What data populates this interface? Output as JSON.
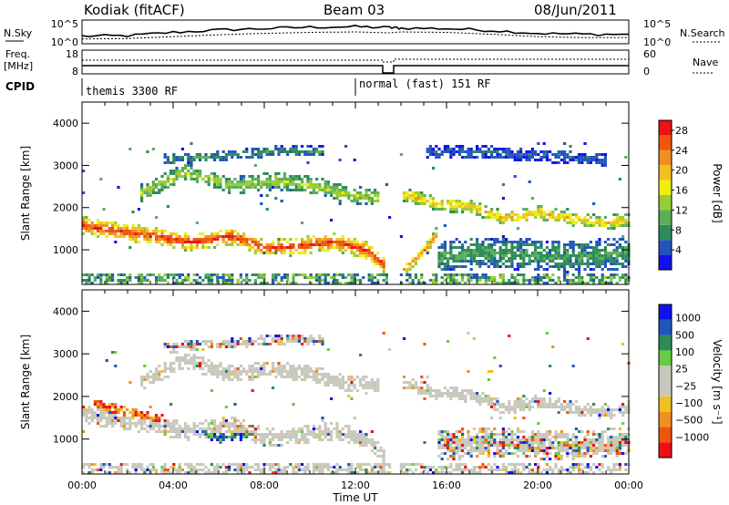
{
  "header": {
    "station": "Kodiak (fitACF)",
    "beam": "Beam 03",
    "date": "08/Jun/2011"
  },
  "nsky_panel": {
    "left_label": "N.Sky",
    "right_label": "N.Search",
    "left_ticks": [
      "10^5",
      "10^0"
    ],
    "right_ticks": [
      "10^5",
      "10^0"
    ]
  },
  "freq_panel": {
    "left_label_1": "Freq.",
    "left_label_2": "[MHz]",
    "right_label": "Nave",
    "left_ticks": [
      "18",
      "8"
    ],
    "right_ticks": [
      "60",
      "0"
    ]
  },
  "cpid": {
    "label": "CPID",
    "segments": [
      {
        "text": "themis 3300 RF",
        "start_hour": 0
      },
      {
        "text": "normal (fast) 151 RF",
        "start_hour": 12
      }
    ]
  },
  "colors": {
    "power_scale": [
      "#1111ee",
      "#2255bb",
      "#2e8b57",
      "#5aae5a",
      "#99cc33",
      "#eeee11",
      "#f0c020",
      "#f09020",
      "#ee5511",
      "#ee1111"
    ],
    "velocity_scale": [
      "#ee1111",
      "#ee5511",
      "#f09020",
      "#f0c020",
      "#c8c8bc",
      "#c8c8bc",
      "#66cc44",
      "#2e8b57",
      "#2255bb",
      "#1111ee"
    ],
    "ground_scatter": "#c8c8bc"
  },
  "chart_data": [
    {
      "type": "line",
      "panel": "sky-noise",
      "x": [
        0,
        2,
        4,
        6,
        8,
        10,
        12,
        13.5,
        14,
        16,
        18,
        20,
        22,
        24
      ],
      "series": [
        {
          "values": [
            1.6,
            1.7,
            2.4,
            2.9,
            3.2,
            3.5,
            3.6,
            3.4,
            3.3,
            3.2,
            2.8,
            2.2,
            2.0,
            2.0
          ]
        },
        {
          "values": [
            1.0,
            1.1,
            1.5,
            1.9,
            2.2,
            2.4,
            2.5,
            2.3,
            2.5,
            2.4,
            2.0,
            1.5,
            1.3,
            1.3
          ]
        }
      ],
      "ylim": [
        0,
        5
      ]
    },
    {
      "type": "heatmap",
      "panel": "power",
      "title": "",
      "xlabel": "",
      "ylabel": "Slant Range [km]",
      "xlim": [
        0,
        24
      ],
      "ylim": [
        180,
        4500
      ],
      "yticks": [
        1000,
        2000,
        3000,
        4000
      ],
      "colorbar": {
        "label": "Power [dB]",
        "ticks": [
          4,
          8,
          12,
          16,
          20,
          24,
          28
        ],
        "range": [
          0,
          30
        ]
      },
      "bands": [
        {
          "x": [
            0.0,
            1.5,
            3.0,
            4.5,
            5.5,
            6.5,
            8.0,
            9.5,
            11.0,
            12.5,
            13.2
          ],
          "y": [
            1550,
            1400,
            1300,
            1150,
            1200,
            1300,
            1000,
            1050,
            1150,
            950,
            600
          ],
          "width": 420,
          "peak": 28
        },
        {
          "x": [
            2.5,
            4.5,
            6.5,
            8.5,
            10.0,
            11.5,
            13.0
          ],
          "y": [
            2300,
            2800,
            2500,
            2600,
            2500,
            2300,
            2200
          ],
          "width": 420,
          "peak": 14
        },
        {
          "x": [
            14.0,
            15.5,
            17.0,
            18.5,
            20.0,
            21.5,
            23.0,
            24.0
          ],
          "y": [
            2300,
            2050,
            2000,
            1700,
            1850,
            1700,
            1600,
            1700
          ],
          "width": 330,
          "peak": 20
        },
        {
          "x": [
            15.5,
            17.5,
            19.5,
            21.5,
            24.0
          ],
          "y": [
            800,
            900,
            850,
            800,
            900
          ],
          "width": 750,
          "peak": 9
        },
        {
          "x": [
            14.0,
            14.8,
            15.5
          ],
          "y": [
            450,
            850,
            1300
          ],
          "width": 280,
          "peak": 24
        },
        {
          "x": [
            3.5,
            6.0,
            8.5,
            10.5
          ],
          "y": [
            3100,
            3200,
            3300,
            3300
          ],
          "width": 250,
          "peak": 8
        },
        {
          "x": [
            15.0,
            17.5,
            20.0,
            23.0
          ],
          "y": [
            3300,
            3300,
            3200,
            3100
          ],
          "width": 300,
          "peak": 5
        }
      ]
    },
    {
      "type": "heatmap",
      "panel": "velocity",
      "xlabel": "Time UT",
      "ylabel": "Slant Range [km]",
      "xlim": [
        0,
        24
      ],
      "ylim": [
        180,
        4500
      ],
      "xticks": [
        "00:00",
        "04:00",
        "08:00",
        "12:00",
        "16:00",
        "20:00",
        "00:00"
      ],
      "yticks": [
        1000,
        2000,
        3000,
        4000
      ],
      "colorbar": {
        "label": "Velocity [m s⁻¹]",
        "ticks": [
          "1000",
          "500",
          "100",
          "25",
          "−25",
          "−100",
          "−500",
          "−1000"
        ]
      },
      "bands": [
        {
          "x": [
            0.0,
            1.5,
            3.0,
            4.5,
            5.5,
            6.5,
            8.0,
            9.5,
            11.0,
            12.5,
            13.2
          ],
          "y": [
            1550,
            1400,
            1300,
            1150,
            1200,
            1300,
            1000,
            1050,
            1150,
            950,
            600
          ],
          "width": 420,
          "kind": "ground"
        },
        {
          "x": [
            2.5,
            4.5,
            6.5,
            8.5,
            10.0,
            11.5,
            13.0
          ],
          "y": [
            2300,
            2800,
            2500,
            2600,
            2500,
            2300,
            2200
          ],
          "width": 400,
          "kind": "ground"
        },
        {
          "x": [
            14.0,
            15.5,
            17.0,
            18.5,
            20.0,
            21.5,
            23.0,
            24.0
          ],
          "y": [
            2300,
            2050,
            2000,
            1700,
            1850,
            1700,
            1600,
            1700
          ],
          "width": 320,
          "kind": "ground"
        },
        {
          "x": [
            15.5,
            17.5,
            19.5,
            21.5,
            24.0
          ],
          "y": [
            800,
            900,
            850,
            800,
            900
          ],
          "width": 700,
          "kind": "mixed"
        },
        {
          "x": [
            0.5,
            2.0,
            3.5
          ],
          "y": [
            1800,
            1600,
            1400
          ],
          "width": 250,
          "kind": "negative"
        },
        {
          "x": [
            5.0,
            6.0,
            7.5
          ],
          "y": [
            1200,
            1000,
            1100
          ],
          "width": 250,
          "kind": "positive"
        },
        {
          "x": [
            3.5,
            6.0,
            8.5,
            10.5
          ],
          "y": [
            3100,
            3200,
            3300,
            3300
          ],
          "width": 250,
          "kind": "mixed"
        }
      ]
    }
  ]
}
